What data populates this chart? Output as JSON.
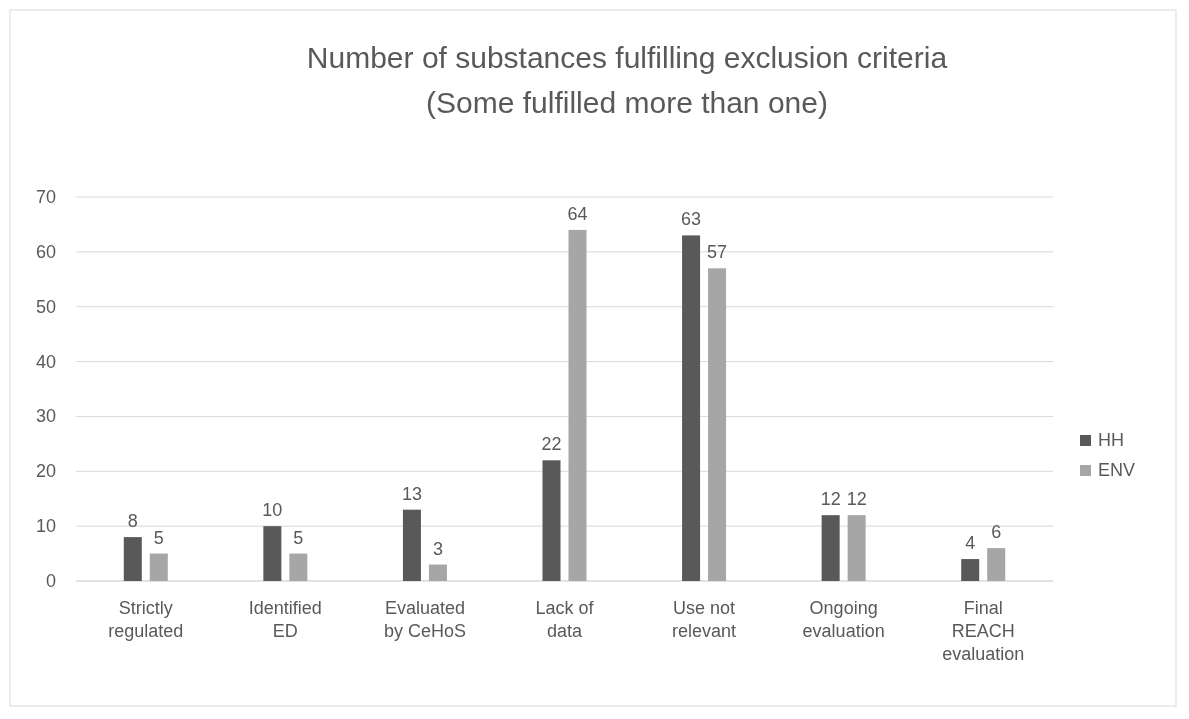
{
  "chart_data": {
    "type": "bar",
    "title": "Number of substances fulfilling exclusion criteria\n(Some fulfilled more than one)",
    "categories": [
      "Strictly regulated",
      "Identified ED",
      "Evaluated by CeHoS",
      "Lack of data",
      "Use not relevant",
      "Ongoing evaluation",
      "Final REACH evaluation"
    ],
    "series": [
      {
        "name": "HH",
        "color": "#595959",
        "values": [
          8,
          10,
          13,
          22,
          63,
          12,
          4
        ]
      },
      {
        "name": "ENV",
        "color": "#a6a6a6",
        "values": [
          5,
          5,
          3,
          64,
          57,
          12,
          6
        ]
      }
    ],
    "ylim": [
      0,
      70
    ],
    "yticks": [
      0,
      10,
      20,
      30,
      40,
      50,
      60,
      70
    ],
    "grid": "y",
    "legend": "right",
    "data_labels": true
  }
}
